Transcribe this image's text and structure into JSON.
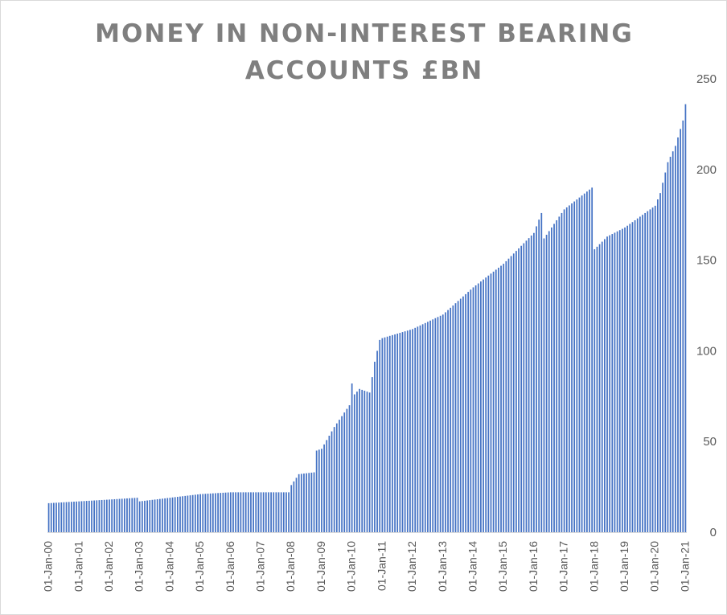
{
  "title": {
    "line1": "MONEY IN NON-INTEREST BEARING",
    "line2": "ACCOUNTS £BN"
  },
  "colors": {
    "bar": "#4472c4",
    "title": "#7f7f7f",
    "axis_text": "#595959",
    "axis_line": "#d9d9d9"
  },
  "chart_data": {
    "type": "bar",
    "title": "MONEY IN NON-INTEREST BEARING ACCOUNTS £BN",
    "xlabel": "",
    "ylabel": "",
    "ylim": [
      0,
      250
    ],
    "y_axis_side": "right",
    "y_ticks": [
      0,
      50,
      100,
      150,
      200,
      250
    ],
    "x_tick_labels": [
      "01-Jan-00",
      "01-Jan-01",
      "01-Jan-02",
      "01-Jan-03",
      "01-Jan-04",
      "01-Jan-05",
      "01-Jan-06",
      "01-Jan-07",
      "01-Jan-08",
      "01-Jan-09",
      "01-Jan-10",
      "01-Jan-11",
      "01-Jan-12",
      "01-Jan-13",
      "01-Jan-14",
      "01-Jan-15",
      "01-Jan-16",
      "01-Jan-17",
      "01-Jan-18",
      "01-Jan-19",
      "01-Jan-20",
      "01-Jan-21"
    ],
    "gridlines": false,
    "legend": "none",
    "frequency": "monthly",
    "start": "2000-01",
    "end": "2021-01",
    "anchors": [
      [
        "2000-01",
        16
      ],
      [
        "2001-01",
        17
      ],
      [
        "2002-01",
        18
      ],
      [
        "2002-12",
        19
      ],
      [
        "2003-01",
        17
      ],
      [
        "2004-01",
        19
      ],
      [
        "2005-01",
        21
      ],
      [
        "2006-01",
        22
      ],
      [
        "2007-01",
        22
      ],
      [
        "2007-12",
        22
      ],
      [
        "2008-01",
        26
      ],
      [
        "2008-04",
        32
      ],
      [
        "2008-10",
        33
      ],
      [
        "2008-11",
        45
      ],
      [
        "2009-01",
        46
      ],
      [
        "2009-06",
        58
      ],
      [
        "2009-12",
        70
      ],
      [
        "2010-01",
        82
      ],
      [
        "2010-02",
        76
      ],
      [
        "2010-04",
        79
      ],
      [
        "2010-08",
        77
      ],
      [
        "2010-10",
        94
      ],
      [
        "2010-12",
        106
      ],
      [
        "2011-01",
        107
      ],
      [
        "2012-01",
        112
      ],
      [
        "2013-01",
        120
      ],
      [
        "2014-01",
        135
      ],
      [
        "2015-01",
        148
      ],
      [
        "2016-01",
        165
      ],
      [
        "2016-04",
        176
      ],
      [
        "2016-05",
        162
      ],
      [
        "2017-01",
        178
      ],
      [
        "2017-12",
        190
      ],
      [
        "2018-01",
        156
      ],
      [
        "2018-06",
        163
      ],
      [
        "2019-01",
        168
      ],
      [
        "2020-01",
        180
      ],
      [
        "2020-03",
        187
      ],
      [
        "2020-06",
        204
      ],
      [
        "2020-09",
        213
      ],
      [
        "2020-12",
        227
      ],
      [
        "2021-01",
        236
      ]
    ]
  }
}
